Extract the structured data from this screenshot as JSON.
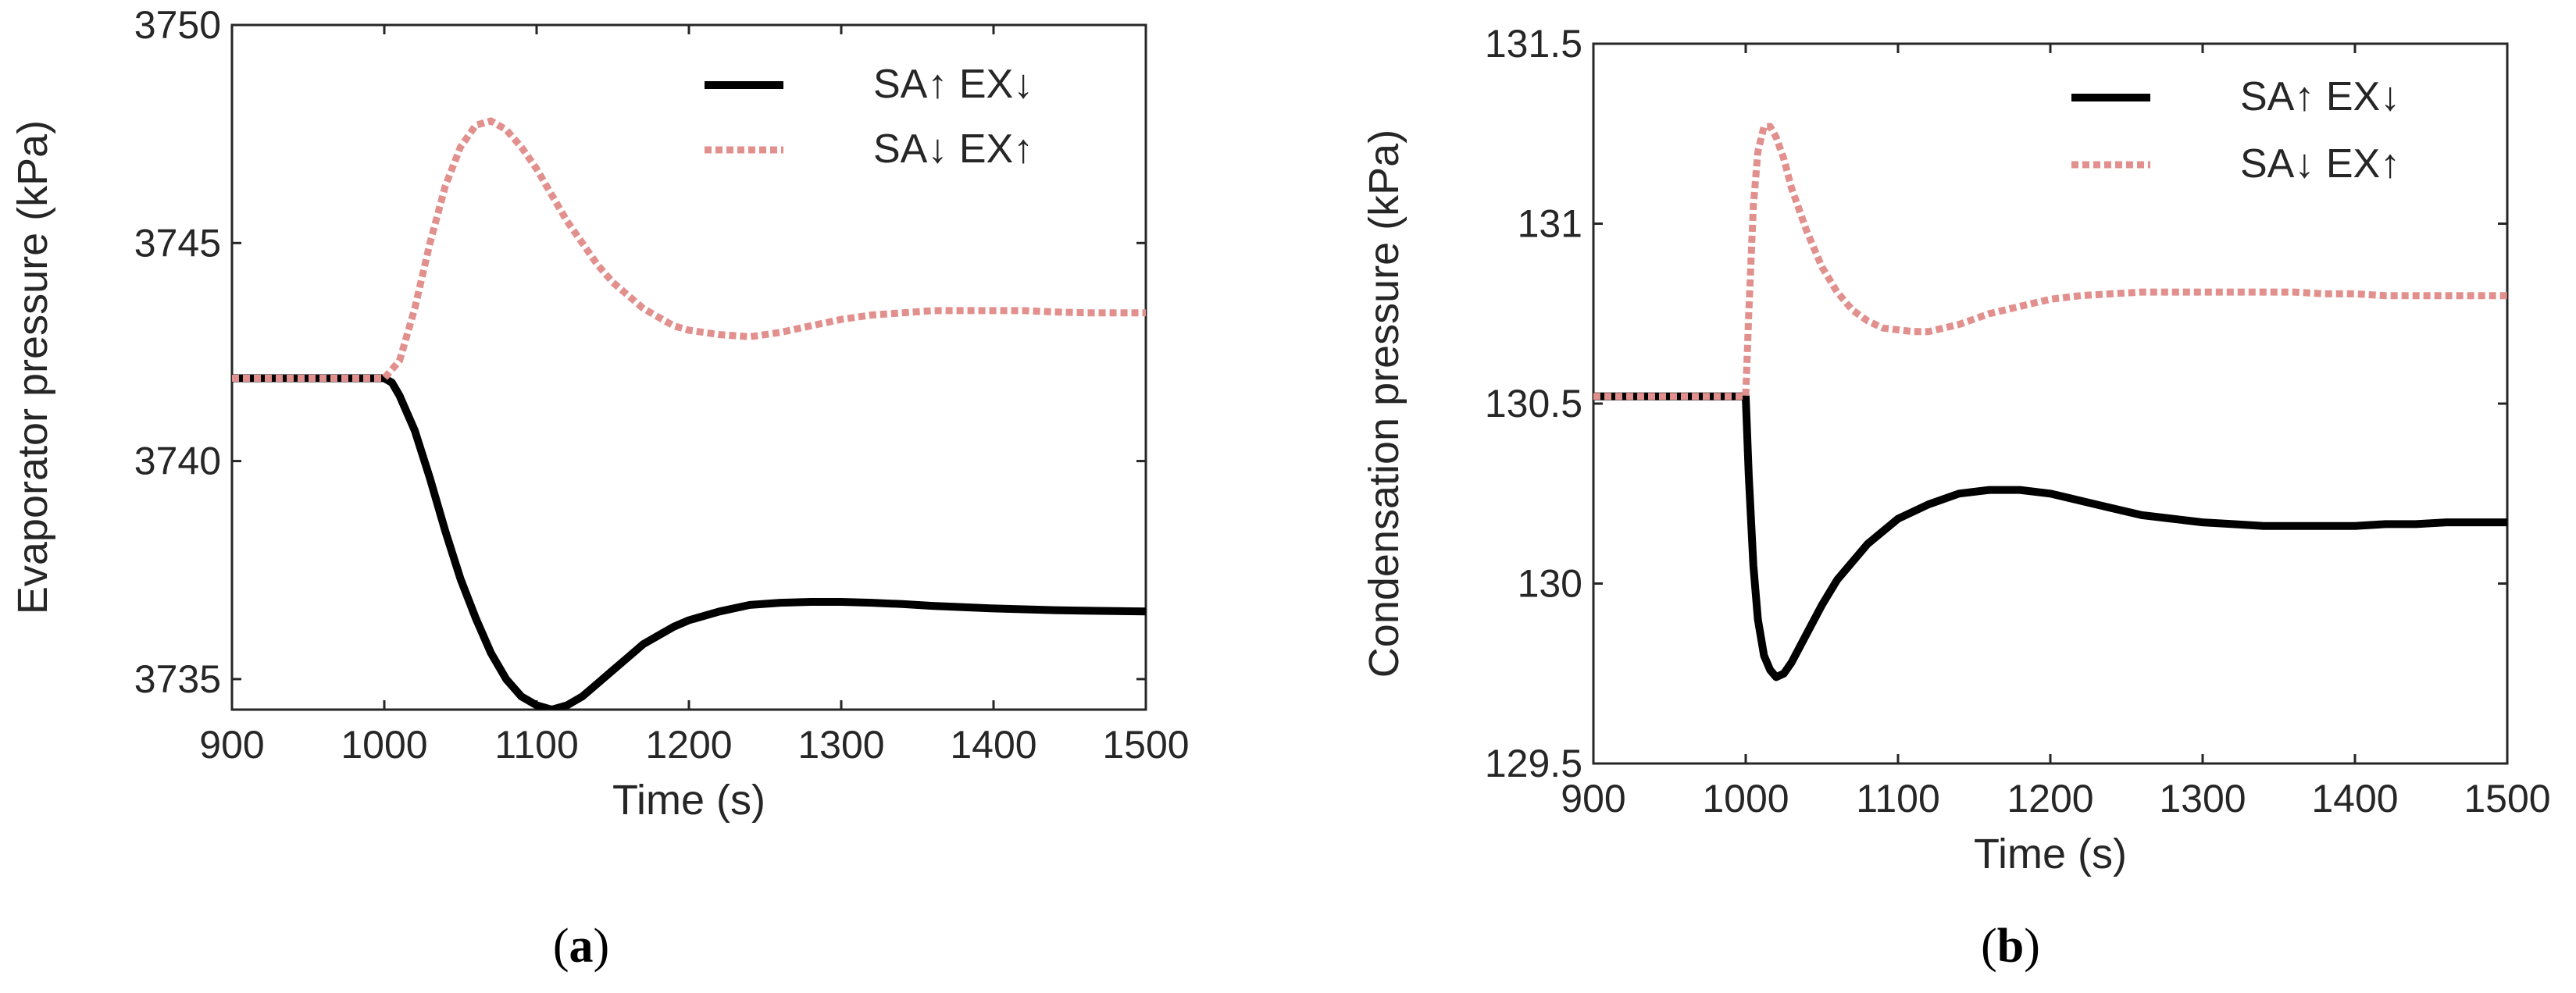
{
  "chart_data": [
    {
      "type": "line",
      "panel": "a",
      "caption_open": "(",
      "caption_letter": "a",
      "caption_close": ")",
      "xlabel": "Time (s)",
      "ylabel": "Evaporator pressure (kPa)",
      "xlim": [
        900,
        1500
      ],
      "ylim": [
        3734.3,
        3750
      ],
      "xticks": [
        "900",
        "1000",
        "1100",
        "1200",
        "1300",
        "1400",
        "1500"
      ],
      "yticks": [
        "3735",
        "3740",
        "3745",
        "3750"
      ],
      "legend_position": "top-right",
      "series": [
        {
          "name": "SA↑ EX↓",
          "color": "#000000",
          "style": "solid",
          "x": [
            900,
            1000,
            1005,
            1010,
            1020,
            1030,
            1040,
            1050,
            1060,
            1070,
            1080,
            1090,
            1100,
            1110,
            1120,
            1130,
            1140,
            1150,
            1160,
            1170,
            1180,
            1190,
            1200,
            1220,
            1240,
            1260,
            1280,
            1300,
            1320,
            1340,
            1360,
            1380,
            1400,
            1420,
            1440,
            1460,
            1480,
            1500
          ],
          "y": [
            3741.9,
            3741.9,
            3741.8,
            3741.5,
            3740.7,
            3739.6,
            3738.4,
            3737.3,
            3736.4,
            3735.6,
            3735.0,
            3734.6,
            3734.4,
            3734.3,
            3734.4,
            3734.6,
            3734.9,
            3735.2,
            3735.5,
            3735.8,
            3736.0,
            3736.2,
            3736.35,
            3736.55,
            3736.7,
            3736.75,
            3736.77,
            3736.77,
            3736.75,
            3736.72,
            3736.68,
            3736.65,
            3736.62,
            3736.6,
            3736.58,
            3736.57,
            3736.56,
            3736.55
          ]
        },
        {
          "name": "SA↓ EX↑",
          "color": "#e1908d",
          "style": "dotted",
          "x": [
            900,
            1000,
            1010,
            1020,
            1030,
            1040,
            1050,
            1060,
            1070,
            1080,
            1090,
            1100,
            1110,
            1120,
            1130,
            1140,
            1150,
            1160,
            1170,
            1180,
            1190,
            1200,
            1220,
            1240,
            1260,
            1280,
            1300,
            1320,
            1340,
            1360,
            1380,
            1400,
            1420,
            1440,
            1460,
            1480,
            1500
          ],
          "y": [
            3741.9,
            3741.9,
            3742.3,
            3743.5,
            3745.0,
            3746.3,
            3747.2,
            3747.7,
            3747.8,
            3747.6,
            3747.2,
            3746.7,
            3746.1,
            3745.5,
            3745.0,
            3744.5,
            3744.1,
            3743.8,
            3743.5,
            3743.3,
            3743.1,
            3743.0,
            3742.9,
            3742.85,
            3742.95,
            3743.1,
            3743.25,
            3743.35,
            3743.4,
            3743.45,
            3743.45,
            3743.45,
            3743.45,
            3743.42,
            3743.4,
            3743.4,
            3743.4
          ]
        }
      ]
    },
    {
      "type": "line",
      "panel": "b",
      "caption_open": "(",
      "caption_letter": "b",
      "caption_close": ")",
      "xlabel": "Time (s)",
      "ylabel": "Condensation pressure (kPa)",
      "xlim": [
        900,
        1500
      ],
      "ylim": [
        129.5,
        131.5
      ],
      "xticks": [
        "900",
        "1000",
        "1100",
        "1200",
        "1300",
        "1400",
        "1500"
      ],
      "yticks": [
        "129.5",
        "130",
        "130.5",
        "131",
        "131.5"
      ],
      "legend_position": "top-right",
      "series": [
        {
          "name": "SA↑ EX↓",
          "color": "#000000",
          "style": "solid",
          "x": [
            900,
            1000,
            1002,
            1005,
            1008,
            1012,
            1016,
            1020,
            1025,
            1030,
            1040,
            1050,
            1060,
            1080,
            1100,
            1120,
            1140,
            1160,
            1180,
            1200,
            1220,
            1240,
            1260,
            1280,
            1300,
            1320,
            1340,
            1360,
            1380,
            1400,
            1420,
            1440,
            1460,
            1480,
            1500
          ],
          "y": [
            130.52,
            130.52,
            130.3,
            130.05,
            129.9,
            129.8,
            129.76,
            129.74,
            129.75,
            129.78,
            129.86,
            129.94,
            130.01,
            130.11,
            130.18,
            130.22,
            130.25,
            130.26,
            130.26,
            130.25,
            130.23,
            130.21,
            130.19,
            130.18,
            130.17,
            130.165,
            130.16,
            130.16,
            130.16,
            130.16,
            130.165,
            130.165,
            130.17,
            130.17,
            130.17
          ]
        },
        {
          "name": "SA↓ EX↑",
          "color": "#e1908d",
          "style": "dotted",
          "x": [
            900,
            1000,
            1002,
            1005,
            1008,
            1012,
            1016,
            1020,
            1025,
            1030,
            1040,
            1050,
            1060,
            1070,
            1080,
            1090,
            1100,
            1110,
            1120,
            1140,
            1160,
            1180,
            1200,
            1220,
            1240,
            1260,
            1280,
            1300,
            1320,
            1340,
            1360,
            1380,
            1400,
            1420,
            1440,
            1460,
            1480,
            1500
          ],
          "y": [
            130.52,
            130.52,
            130.75,
            131.05,
            131.2,
            131.27,
            131.27,
            131.24,
            131.18,
            131.1,
            130.98,
            130.88,
            130.81,
            130.76,
            130.73,
            130.71,
            130.705,
            130.7,
            130.7,
            130.72,
            130.75,
            130.77,
            130.79,
            130.8,
            130.805,
            130.81,
            130.81,
            130.81,
            130.81,
            130.81,
            130.81,
            130.805,
            130.805,
            130.8,
            130.8,
            130.8,
            130.8,
            130.8
          ]
        }
      ]
    }
  ]
}
